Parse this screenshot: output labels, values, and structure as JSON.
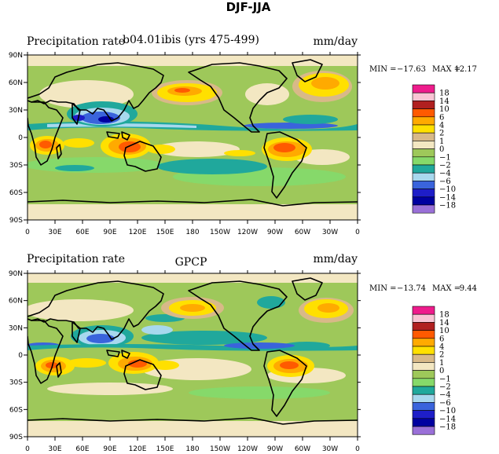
{
  "figure_title": "DJF-JJA",
  "chart_data": [
    {
      "type": "heatmap",
      "title_left": "Precipitation rate",
      "title_center": "b04.01ibis (yrs 475-499)",
      "title_right": "mm/day",
      "stats": {
        "min_label": "MIN =",
        "min_value": "−17.63",
        "max_label": "MAX =",
        "max_value": "12.17"
      },
      "x_ticks": [
        "0",
        "30E",
        "60E",
        "90E",
        "120E",
        "150E",
        "180",
        "150W",
        "120W",
        "90W",
        "60W",
        "30W",
        "0"
      ],
      "y_ticks": [
        "90N",
        "60N",
        "30N",
        "0",
        "30S",
        "60S",
        "90S"
      ],
      "colorbar_levels": [
        "18",
        "14",
        "10",
        "6",
        "4",
        "2",
        "1",
        "0",
        "−1",
        "−2",
        "−4",
        "−6",
        "−10",
        "−14",
        "−18"
      ]
    },
    {
      "type": "heatmap",
      "title_left": "Precipitation rate",
      "title_center": "GPCP",
      "title_right": "mm/day",
      "stats": {
        "min_label": "MIN =",
        "min_value": "−13.74",
        "max_label": "MAX =",
        "max_value": "9.44"
      },
      "x_ticks": [
        "0",
        "30E",
        "60E",
        "90E",
        "120E",
        "150E",
        "180",
        "150W",
        "120W",
        "90W",
        "60W",
        "30W",
        "0"
      ],
      "y_ticks": [
        "90N",
        "60N",
        "30N",
        "0",
        "30S",
        "60S",
        "90S"
      ],
      "colorbar_levels": [
        "18",
        "14",
        "10",
        "6",
        "4",
        "2",
        "1",
        "0",
        "−1",
        "−2",
        "−4",
        "−6",
        "−10",
        "−14",
        "−18"
      ]
    }
  ],
  "colorbar_colors": [
    "#ee1c8c",
    "#f9c4d4",
    "#b02020",
    "#ff5a00",
    "#ffaa00",
    "#ffe000",
    "#d8b988",
    "#f3e7c2",
    "#9ec85a",
    "#86d96a",
    "#20a89c",
    "#a8d8ee",
    "#3a64dc",
    "#1e1ec8",
    "#0000a0",
    "#9a70d8"
  ]
}
